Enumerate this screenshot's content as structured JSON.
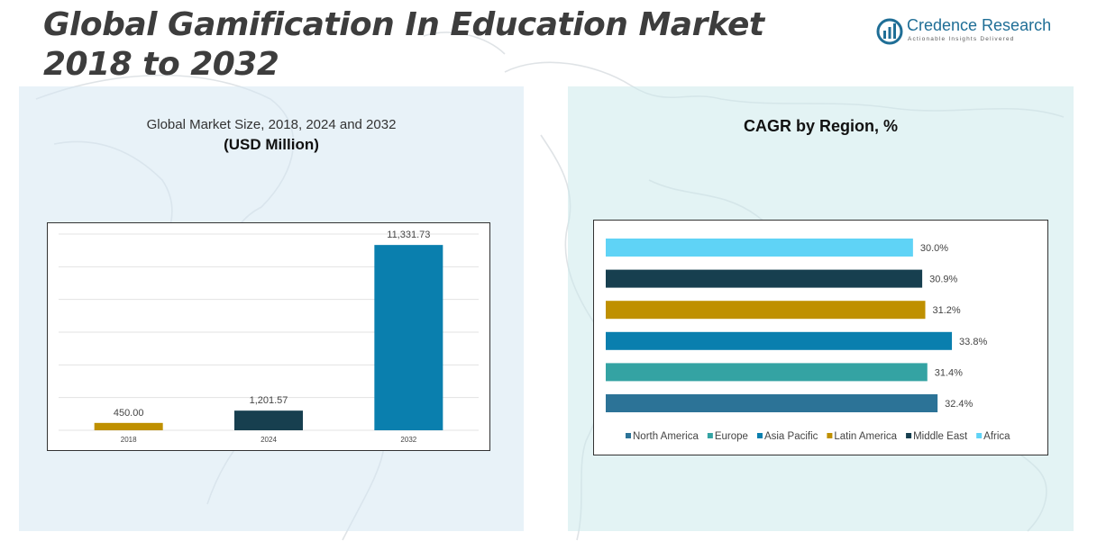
{
  "page": {
    "title": "Global Gamification In Education Market 2018 to 2032",
    "brand": {
      "name": "Credence Research",
      "tagline": "Actionable Insights Delivered",
      "color": "#1f6e96"
    }
  },
  "left_panel": {
    "title": "Global Market Size, 2018, 2024 and 2032",
    "subtitle": "(USD Million)"
  },
  "right_panel": {
    "title": "CAGR by Region, %"
  },
  "chart_data": [
    {
      "type": "bar",
      "orientation": "vertical",
      "title": "Global Market Size, 2018, 2024 and 2032",
      "ylabel": "(USD Million)",
      "categories": [
        "2018",
        "2024",
        "2032"
      ],
      "values": [
        450.0,
        1201.57,
        11331.73
      ],
      "value_labels": [
        "450.00",
        "1,201.57",
        "11,331.73"
      ],
      "colors": [
        "#bf9000",
        "#173f4f",
        "#0a7fae"
      ],
      "ylim": [
        0,
        12000
      ],
      "grid": true,
      "legend": "none"
    },
    {
      "type": "bar",
      "orientation": "horizontal",
      "title": "CAGR by Region, %",
      "series": [
        {
          "name": "North America",
          "value": 32.4,
          "label": "32.4%",
          "color": "#2c7397"
        },
        {
          "name": "Europe",
          "value": 31.4,
          "label": "31.4%",
          "color": "#34a3a3"
        },
        {
          "name": "Asia Pacific",
          "value": 33.8,
          "label": "33.8%",
          "color": "#0a7fae"
        },
        {
          "name": "Latin America",
          "value": 31.2,
          "label": "31.2%",
          "color": "#bf9000"
        },
        {
          "name": "Middle East",
          "value": 30.9,
          "label": "30.9%",
          "color": "#173f4f"
        },
        {
          "name": "Africa",
          "value": 30.0,
          "label": "30.0%",
          "color": "#5fd3f6"
        }
      ],
      "bar_order_top_to_bottom": [
        "Africa",
        "Middle East",
        "Latin America",
        "Asia Pacific",
        "Europe",
        "North America"
      ],
      "xlim": [
        0,
        34.5
      ],
      "grid": false,
      "legend": "bottom"
    }
  ]
}
